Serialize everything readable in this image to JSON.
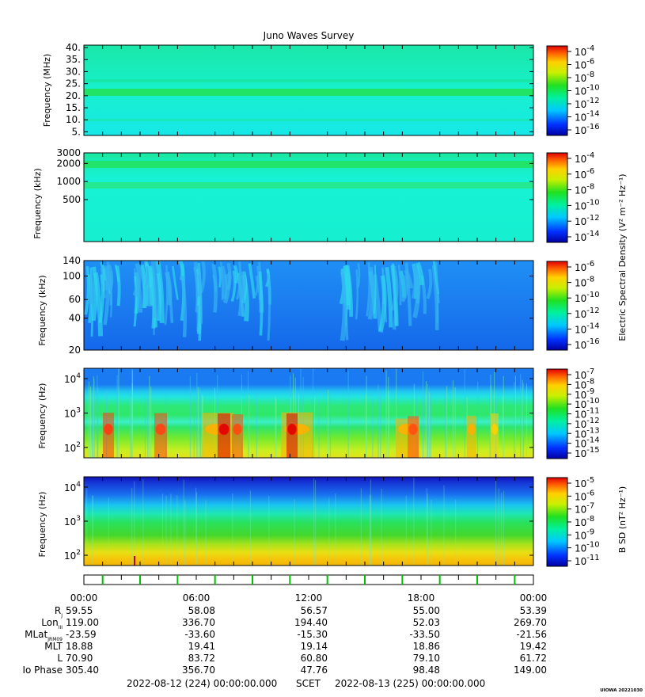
{
  "title": "Juno Waves Survey",
  "footer": {
    "start": "2022-08-12 (224) 00:00:00.000",
    "scet": "SCET",
    "end": "2022-08-13 (225) 00:00:00.000",
    "credit": "UIOWA 20221030"
  },
  "colorbar_labels": {
    "electric": "Electric Spectral Density (V² m⁻² Hz⁻¹)",
    "magnetic": "B SD (nT² Hz⁻¹)"
  },
  "time_axis": {
    "ticks": [
      "00:00",
      "06:00",
      "12:00",
      "18:00",
      "00:00"
    ]
  },
  "ephemeris": [
    {
      "label": "R",
      "sub": "J",
      "values": [
        "59.55",
        "58.08",
        "56.57",
        "55.00",
        "53.39"
      ]
    },
    {
      "label": "Lon",
      "sub": "III",
      "values": [
        "119.00",
        "336.70",
        "194.40",
        "52.03",
        "269.70"
      ]
    },
    {
      "label": "MLat",
      "sub": "JRM09",
      "values": [
        "-23.59",
        "-33.60",
        "-15.30",
        "-33.50",
        "-21.56"
      ]
    },
    {
      "label": "MLT",
      "sub": "",
      "values": [
        "18.88",
        "19.41",
        "19.14",
        "18.86",
        "19.42"
      ]
    },
    {
      "label": "L",
      "sub": "",
      "values": [
        "70.90",
        "83.72",
        "60.80",
        "79.10",
        "61.72"
      ]
    },
    {
      "label": "Io Phase",
      "sub": "",
      "values": [
        "305.40",
        "356.70",
        "47.76",
        "98.48",
        "149.00"
      ]
    }
  ],
  "colors": {
    "panel_background_1": "#19f0c9",
    "panel_background_2": "#17f2d5",
    "panel_background_3": "#1b7ff1",
    "panel_background_4": "#19e98f",
    "panel_background_5": "#23c84c"
  },
  "chart_data": [
    {
      "type": "heatmap",
      "panel": 1,
      "ylabel": "Frequency (MHz)",
      "yscale": "linear",
      "ylim": [
        3.5,
        41
      ],
      "yticks": [
        "5.",
        "10.",
        "15.",
        "20.",
        "25.",
        "30.",
        "35.",
        "40."
      ],
      "colorbar": {
        "ticks": [
          "-4",
          "-6",
          "-8",
          "-10",
          "-12",
          "-14",
          "-16"
        ],
        "base": "10"
      },
      "features": [
        {
          "freq_mhz": 21,
          "note": "steady band"
        }
      ]
    },
    {
      "type": "heatmap",
      "panel": 2,
      "ylabel": "Frequency (kHz)",
      "yscale": "log",
      "ylim": [
        100,
        3000
      ],
      "yticks": [
        "500",
        "1000",
        "2000",
        "3000"
      ],
      "colorbar": {
        "ticks": [
          "-4",
          "-6",
          "-8",
          "-10",
          "-12",
          "-14"
        ],
        "base": "10"
      },
      "features": [
        {
          "freq_khz": 2000
        },
        {
          "freq_khz": 1000
        }
      ]
    },
    {
      "type": "heatmap",
      "panel": 3,
      "ylabel": "Frequency (kHz)",
      "yscale": "log",
      "ylim": [
        20,
        140
      ],
      "yticks": [
        "20",
        "40",
        "60",
        "100",
        "140"
      ],
      "colorbar": {
        "ticks": [
          "-6",
          "-8",
          "-10",
          "-12",
          "-14",
          "-16"
        ],
        "base": "10"
      }
    },
    {
      "type": "heatmap",
      "panel": 4,
      "ylabel": "Frequency (Hz)",
      "yscale": "log",
      "ylim": [
        50,
        20000
      ],
      "yticks": [
        {
          "base": "10",
          "exp": "2"
        },
        {
          "base": "10",
          "exp": "3"
        },
        {
          "base": "10",
          "exp": "4"
        }
      ],
      "colorbar": {
        "ticks": [
          "-7",
          "-8",
          "-9",
          "-10",
          "-11",
          "-12",
          "-13",
          "-14",
          "-15"
        ],
        "base": "10"
      }
    },
    {
      "type": "heatmap",
      "panel": 5,
      "ylabel": "Frequency (Hz)",
      "yscale": "log",
      "ylim": [
        50,
        20000
      ],
      "yticks": [
        {
          "base": "10",
          "exp": "2"
        },
        {
          "base": "10",
          "exp": "3"
        },
        {
          "base": "10",
          "exp": "4"
        }
      ],
      "colorbar": {
        "ticks": [
          "-5",
          "-6",
          "-7",
          "-8",
          "-9",
          "-10",
          "-11"
        ],
        "base": "10"
      }
    }
  ]
}
